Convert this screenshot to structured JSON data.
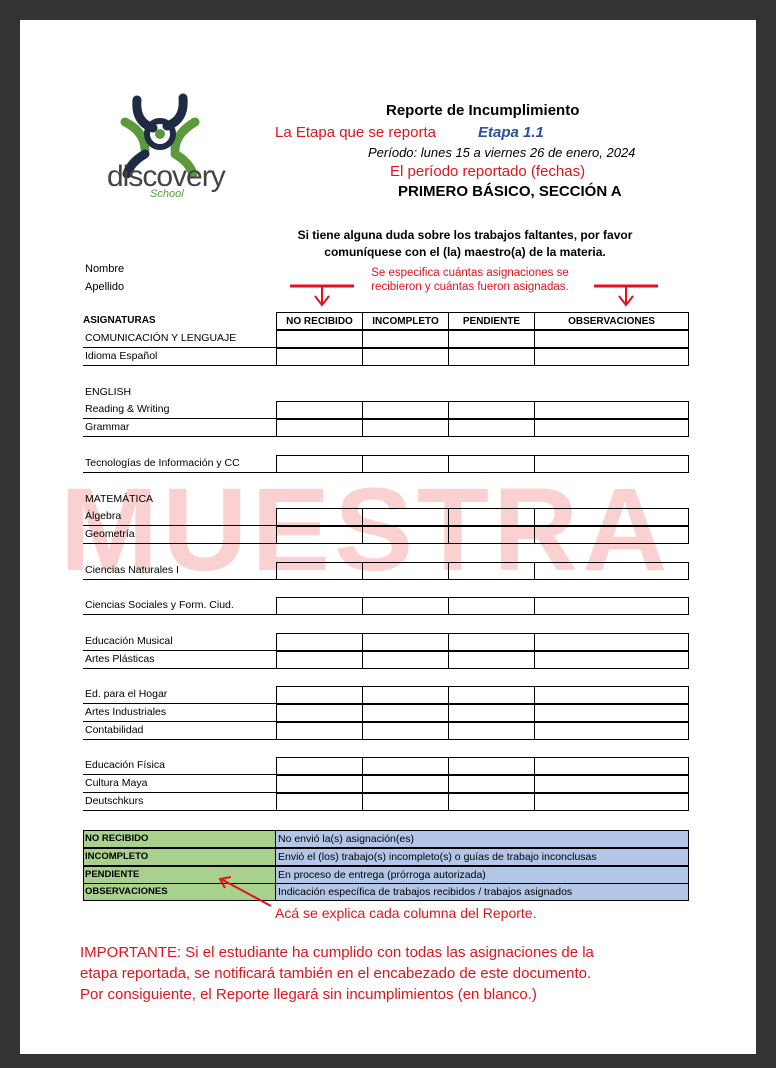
{
  "header": {
    "title": "Reporte de Incumplimiento",
    "etapa_label": "La Etapa que se reporta",
    "etapa_value": "Etapa 1.1",
    "periodo": "Período: lunes 15  a viernes 26 de enero, 2024",
    "periodo_label": "El período reportado (fechas)",
    "grade": "PRIMERO BÁSICO, SECCIÓN A",
    "notice_line1": "Si tiene alguna duda sobre los trabajos faltantes, por favor",
    "notice_line2": "comuníquese con el (la) maestro(a) de la materia."
  },
  "logo": {
    "text": "discovery",
    "subtext": "School"
  },
  "student": {
    "name_label": "Nombre",
    "surname_label": "Apellido"
  },
  "annotation_spec": "Se especifica cuántas asignaciones se recibieron y cuántas fueron asignadas.",
  "watermark": "MUESTRA",
  "table": {
    "headers": [
      "ASIGNATURAS",
      "NO RECIBIDO",
      "INCOMPLETO",
      "PENDIENTE",
      "OBSERVACIONES"
    ],
    "rows": [
      {
        "type": "row",
        "label": "COMUNICACIÓN Y LENGUAJE"
      },
      {
        "type": "row",
        "label": "Idioma Español"
      },
      {
        "type": "blank",
        "label": ""
      },
      {
        "type": "label",
        "label": "ENGLISH"
      },
      {
        "type": "row",
        "label": "Reading & Writing"
      },
      {
        "type": "row",
        "label": "Grammar"
      },
      {
        "type": "blank",
        "label": ""
      },
      {
        "type": "row",
        "label": "Tecnologías de Información y CC"
      },
      {
        "type": "blank",
        "label": ""
      },
      {
        "type": "label",
        "label": "MATEMÁTICA"
      },
      {
        "type": "row",
        "label": "Álgebra"
      },
      {
        "type": "row",
        "label": "Geometría"
      },
      {
        "type": "blank",
        "label": ""
      },
      {
        "type": "row",
        "label": "Ciencias Naturales I"
      },
      {
        "type": "blank",
        "label": ""
      },
      {
        "type": "row",
        "label": "Ciencias Sociales y Form. Ciud."
      },
      {
        "type": "blank",
        "label": ""
      },
      {
        "type": "row",
        "label": "Educación Musical"
      },
      {
        "type": "row",
        "label": "Artes Plásticas"
      },
      {
        "type": "blank",
        "label": ""
      },
      {
        "type": "row",
        "label": "Ed. para el Hogar"
      },
      {
        "type": "row",
        "label": "Artes Industriales"
      },
      {
        "type": "row",
        "label": "Contabilidad"
      },
      {
        "type": "blank",
        "label": ""
      },
      {
        "type": "row",
        "label": "Educación Física"
      },
      {
        "type": "row",
        "label": "Cultura Maya"
      },
      {
        "type": "row",
        "label": "Deutschkurs"
      }
    ]
  },
  "legend": [
    {
      "key": "NO RECIBIDO",
      "value": "No envió la(s) asignación(es)"
    },
    {
      "key": "INCOMPLETO",
      "value": "Envió el (los) trabajo(s) incompleto(s) o guías de trabajo inconclusas"
    },
    {
      "key": "PENDIENTE",
      "value": "En proceso de entrega (prórroga autorizada)"
    },
    {
      "key": "OBSERVACIONES",
      "value": "Indicación específica de trabajos recibidos / trabajos asignados"
    }
  ],
  "explain_note": "Acá se explica cada columna del Reporte.",
  "important": [
    "IMPORTANTE: Si el estudiante ha cumplido con todas las asignaciones de la",
    "etapa reportada, se notificará también en el encabezado de este documento.",
    "Por consiguiente, el Reporte llegará sin incumplimientos (en blanco.)"
  ],
  "colors": {
    "annotation_red": "#e0141b",
    "etapa_blue": "#2e4f9a",
    "legend_green": "#a9d18e",
    "legend_blue": "#b4c6e7",
    "watermark_pink": "#fbd0d0"
  }
}
